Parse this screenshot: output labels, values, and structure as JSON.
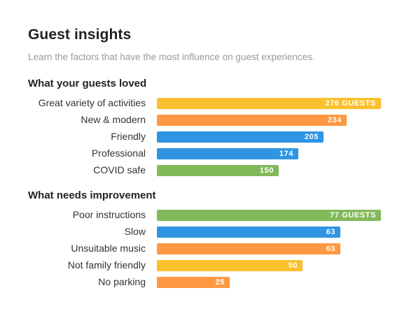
{
  "header": {
    "title": "Guest insights",
    "subtitle": "Learn the factors that have the most influence on guest experiences."
  },
  "colors": {
    "yellow": "#fbc02d",
    "orange": "#ff9843",
    "blue": "#2f95e3",
    "green": "#82b95a"
  },
  "chart_data": [
    {
      "type": "bar",
      "orientation": "horizontal",
      "title": "What your guests loved",
      "value_unit": "GUESTS",
      "categories": [
        "Great variety of activities",
        "New & modern",
        "Friendly",
        "Professional",
        "COVID safe"
      ],
      "values": [
        276,
        234,
        205,
        174,
        150
      ],
      "value_labels": [
        "276 GUESTS",
        "234",
        "205",
        "174",
        "150"
      ],
      "bar_colors": [
        "#fbc02d",
        "#ff9843",
        "#2f95e3",
        "#2f95e3",
        "#82b95a"
      ]
    },
    {
      "type": "bar",
      "orientation": "horizontal",
      "title": "What needs improvement",
      "value_unit": "GUESTS",
      "categories": [
        "Poor instructions",
        "Slow",
        "Unsuitable music",
        "Not family friendly",
        "No parking"
      ],
      "values": [
        77,
        63,
        63,
        50,
        25
      ],
      "value_labels": [
        "77 GUESTS",
        "63",
        "63",
        "50",
        "25"
      ],
      "bar_colors": [
        "#82b95a",
        "#2f95e3",
        "#ff9843",
        "#fbc02d",
        "#ff9843"
      ]
    }
  ]
}
